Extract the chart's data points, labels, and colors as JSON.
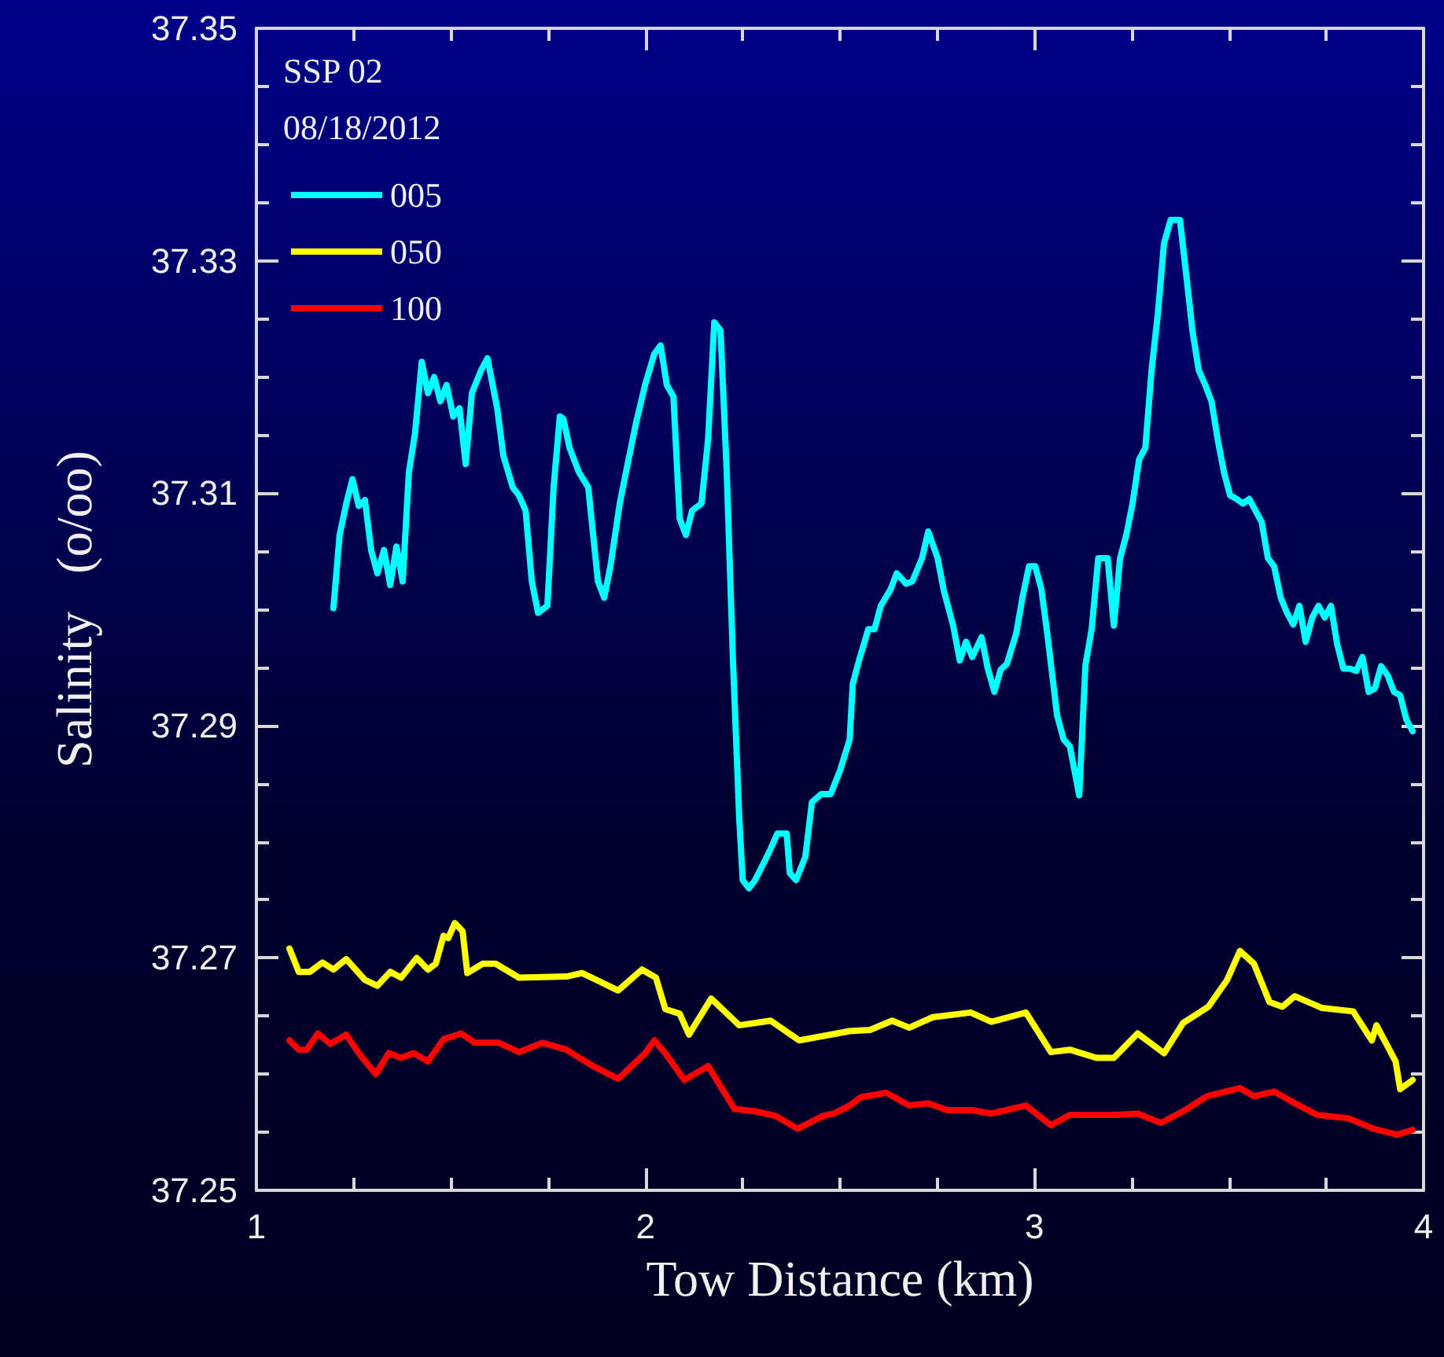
{
  "chart_data": {
    "type": "line",
    "xlabel": "Tow Distance (km)",
    "ylabel": "Salinity   (o/oo)",
    "legend_title": "SSP 02",
    "annotations": [
      "08/18/2012"
    ],
    "xlim": [
      1,
      4
    ],
    "xticks": [
      1,
      2,
      3,
      4
    ],
    "ylim": [
      37.25,
      37.35
    ],
    "yticks": [
      37.25,
      37.27,
      37.29,
      37.31,
      37.33,
      37.35
    ],
    "grid": false,
    "legend": "top left",
    "marker": "none",
    "line_style": "solid",
    "series": [
      {
        "name": "005",
        "color": "#00ffff",
        "x": [
          1.198,
          1.214,
          1.231,
          1.247,
          1.263,
          1.279,
          1.295,
          1.311,
          1.328,
          1.344,
          1.36,
          1.376,
          1.392,
          1.408,
          1.425,
          1.441,
          1.457,
          1.473,
          1.489,
          1.506,
          1.522,
          1.538,
          1.554,
          1.578,
          1.594,
          1.619,
          1.635,
          1.659,
          1.675,
          1.692,
          1.708,
          1.724,
          1.748,
          1.764,
          1.78,
          1.789,
          1.805,
          1.829,
          1.853,
          1.878,
          1.894,
          1.91,
          1.934,
          1.95,
          1.975,
          1.999,
          2.023,
          2.039,
          2.055,
          2.072,
          2.088,
          2.104,
          2.12,
          2.144,
          2.161,
          2.177,
          2.193,
          2.209,
          2.225,
          2.241,
          2.25,
          2.266,
          2.282,
          2.306,
          2.322,
          2.339,
          2.363,
          2.371,
          2.387,
          2.411,
          2.428,
          2.452,
          2.476,
          2.5,
          2.525,
          2.533,
          2.549,
          2.573,
          2.589,
          2.605,
          2.63,
          2.646,
          2.67,
          2.686,
          2.711,
          2.727,
          2.751,
          2.767,
          2.791,
          2.808,
          2.824,
          2.84,
          2.864,
          2.88,
          2.897,
          2.913,
          2.929,
          2.953,
          2.969,
          2.986,
          3.002,
          3.018,
          3.034,
          3.058,
          3.075,
          3.091,
          3.115,
          3.131,
          3.147,
          3.164,
          3.188,
          3.204,
          3.22,
          3.236,
          3.252,
          3.269,
          3.285,
          3.301,
          3.317,
          3.333,
          3.35,
          3.366,
          3.374,
          3.39,
          3.406,
          3.422,
          3.439,
          3.455,
          3.471,
          3.487,
          3.503,
          3.519,
          3.536,
          3.552,
          3.568,
          3.584,
          3.6,
          3.616,
          3.633,
          3.649,
          3.665,
          3.681,
          3.697,
          3.714,
          3.73,
          3.746,
          3.762,
          3.778,
          3.794,
          3.811,
          3.827,
          3.843,
          3.859,
          3.875,
          3.891,
          3.908,
          3.924,
          3.94,
          3.956,
          3.972
        ],
        "values": [
          37.3001,
          37.3064,
          37.3091,
          37.3112,
          37.3089,
          37.3094,
          37.3051,
          37.3031,
          37.3051,
          37.3021,
          37.3054,
          37.3024,
          37.3118,
          37.3152,
          37.3213,
          37.3186,
          37.32,
          37.3179,
          37.3193,
          37.3166,
          37.3173,
          37.3125,
          37.3186,
          37.3206,
          37.3216,
          37.3173,
          37.3132,
          37.3105,
          37.3098,
          37.3085,
          37.3024,
          37.2997,
          37.3003,
          37.3105,
          37.3166,
          37.3164,
          37.3139,
          37.3118,
          37.3105,
          37.3024,
          37.301,
          37.3037,
          37.3091,
          37.3118,
          37.3159,
          37.3193,
          37.322,
          37.3227,
          37.3193,
          37.3183,
          37.3078,
          37.3064,
          37.3085,
          37.3091,
          37.3146,
          37.3247,
          37.324,
          37.3118,
          37.2956,
          37.2821,
          37.2767,
          37.276,
          37.2767,
          37.2783,
          37.2794,
          37.2807,
          37.2807,
          37.2773,
          37.2767,
          37.2787,
          37.2834,
          37.2841,
          37.2841,
          37.2861,
          37.2888,
          37.2936,
          37.2956,
          37.2983,
          37.2983,
          37.3003,
          37.3017,
          37.3031,
          37.3022,
          37.3024,
          37.3044,
          37.3067,
          37.3044,
          37.3016,
          37.2986,
          37.2956,
          37.2972,
          37.2959,
          37.2976,
          37.2949,
          37.2929,
          37.2948,
          37.2953,
          37.2979,
          37.301,
          37.3037,
          37.3037,
          37.3017,
          37.2976,
          37.2909,
          37.2888,
          37.2882,
          37.284,
          37.2952,
          37.2983,
          37.3044,
          37.3044,
          37.2986,
          37.3044,
          37.3064,
          37.3091,
          37.3129,
          37.3139,
          37.3206,
          37.3254,
          37.3315,
          37.3335,
          37.3335,
          37.3335,
          37.3288,
          37.324,
          37.3206,
          37.3193,
          37.3179,
          37.3146,
          37.3118,
          37.3098,
          37.3095,
          37.3091,
          37.3095,
          37.3085,
          37.3075,
          37.3044,
          37.3037,
          37.301,
          37.2997,
          37.2987,
          37.3003,
          37.2972,
          37.2993,
          37.3003,
          37.2993,
          37.3003,
          37.297,
          37.2949,
          37.2949,
          37.2947,
          37.2959,
          37.2929,
          37.2932,
          37.2951,
          37.2943,
          37.2929,
          37.2926,
          37.2905,
          37.2895
        ]
      },
      {
        "name": "050",
        "color": "#ffff00",
        "x": [
          1.085,
          1.109,
          1.137,
          1.17,
          1.198,
          1.231,
          1.279,
          1.311,
          1.344,
          1.372,
          1.412,
          1.441,
          1.461,
          1.481,
          1.493,
          1.51,
          1.53,
          1.542,
          1.582,
          1.615,
          1.675,
          1.797,
          1.837,
          1.93,
          1.991,
          2.027,
          2.051,
          2.088,
          2.112,
          2.169,
          2.241,
          2.322,
          2.395,
          2.525,
          2.577,
          2.634,
          2.678,
          2.739,
          2.836,
          2.889,
          2.978,
          3.042,
          3.091,
          3.159,
          3.204,
          3.265,
          3.333,
          3.382,
          3.447,
          3.495,
          3.528,
          3.564,
          3.604,
          3.637,
          3.669,
          3.738,
          3.819,
          3.867,
          3.879,
          3.928,
          3.94,
          3.972
        ],
        "values": [
          37.2708,
          37.2688,
          37.2688,
          37.2696,
          37.269,
          37.2699,
          37.2681,
          37.2676,
          37.2688,
          37.2683,
          37.27,
          37.269,
          37.2695,
          37.2719,
          37.2717,
          37.273,
          37.2723,
          37.2687,
          37.2695,
          37.2695,
          37.2683,
          37.2684,
          37.2687,
          37.2672,
          37.269,
          37.2683,
          37.2656,
          37.2652,
          37.2634,
          37.2665,
          37.2642,
          37.2646,
          37.2629,
          37.2637,
          37.2638,
          37.2646,
          37.264,
          37.2649,
          37.2653,
          37.2645,
          37.2653,
          37.2619,
          37.2621,
          37.2614,
          37.2614,
          37.2635,
          37.2618,
          37.2644,
          37.2658,
          37.2681,
          37.2706,
          37.2695,
          37.2662,
          37.2658,
          37.2667,
          37.2657,
          37.2654,
          37.2629,
          37.2642,
          37.2611,
          37.2587,
          37.2595
        ]
      },
      {
        "name": "100",
        "color": "#ff0000",
        "x": [
          1.085,
          1.109,
          1.129,
          1.158,
          1.19,
          1.231,
          1.263,
          1.307,
          1.34,
          1.372,
          1.404,
          1.441,
          1.481,
          1.526,
          1.562,
          1.623,
          1.675,
          1.736,
          1.797,
          1.865,
          1.93,
          1.999,
          2.023,
          2.051,
          2.1,
          2.161,
          2.229,
          2.282,
          2.335,
          2.391,
          2.456,
          2.484,
          2.525,
          2.553,
          2.618,
          2.678,
          2.727,
          2.775,
          2.84,
          2.889,
          2.978,
          3.042,
          3.091,
          3.212,
          3.265,
          3.325,
          3.382,
          3.443,
          3.528,
          3.564,
          3.616,
          3.669,
          3.726,
          3.807,
          3.871,
          3.932,
          3.972
        ],
        "values": [
          37.2629,
          37.2621,
          37.2621,
          37.2635,
          37.2626,
          37.2634,
          37.2618,
          37.26,
          37.2618,
          37.2614,
          37.2618,
          37.2611,
          37.263,
          37.2635,
          37.2627,
          37.2627,
          37.2619,
          37.2627,
          37.2621,
          37.2607,
          37.2596,
          37.2618,
          37.2629,
          37.2618,
          37.2595,
          37.2607,
          37.257,
          37.2568,
          37.2564,
          37.2553,
          37.2564,
          37.2566,
          37.2573,
          37.258,
          37.2584,
          37.2573,
          37.2575,
          37.2569,
          37.2569,
          37.2566,
          37.2573,
          37.2556,
          37.2565,
          37.2565,
          37.2566,
          37.2558,
          37.2568,
          37.2581,
          37.2588,
          37.2581,
          37.2585,
          37.2575,
          37.2565,
          37.2562,
          37.2553,
          37.2548,
          37.2552
        ]
      }
    ]
  }
}
